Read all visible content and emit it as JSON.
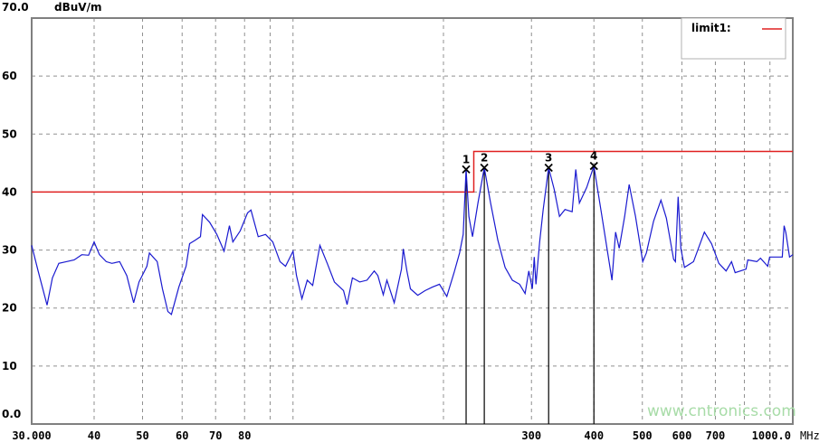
{
  "chart_data": {
    "type": "line",
    "title": "",
    "ylabel": "dBuV/m",
    "xlabel": "MHz",
    "xscale": "log",
    "xlim": [
      30,
      1000
    ],
    "ylim": [
      0,
      70
    ],
    "grid": true,
    "legend_position": "top-right",
    "y_tick_labels": [
      "0.0",
      "10",
      "20",
      "30",
      "40",
      "50",
      "60",
      "70.0"
    ],
    "y_ticks": [
      0,
      10,
      20,
      30,
      40,
      50,
      60,
      70
    ],
    "x_tick_labels": [
      {
        "value": 30,
        "label": "30.000"
      },
      {
        "value": 40,
        "label": "40"
      },
      {
        "value": 50,
        "label": "50"
      },
      {
        "value": 60,
        "label": "60"
      },
      {
        "value": 70,
        "label": "70"
      },
      {
        "value": 80,
        "label": "80"
      },
      {
        "value": 300,
        "label": "300"
      },
      {
        "value": 400,
        "label": "400"
      },
      {
        "value": 500,
        "label": "500"
      },
      {
        "value": 600,
        "label": "600"
      },
      {
        "value": 700,
        "label": "700"
      },
      {
        "value": 1000,
        "label": "1000.0"
      }
    ],
    "x_grid": [
      40,
      50,
      60,
      70,
      80,
      90,
      100,
      200,
      300,
      400,
      500,
      600,
      700,
      800,
      900
    ],
    "limit": {
      "name": "limit1:",
      "color": "#e02020",
      "points": [
        [
          30,
          40
        ],
        [
          230,
          40
        ],
        [
          230,
          47
        ],
        [
          1000,
          47
        ]
      ]
    },
    "trace_color": "#1a1ad0",
    "trace": [
      [
        30.0,
        30.8
      ],
      [
        30.9,
        26.4
      ],
      [
        32.2,
        20.5
      ],
      [
        33.0,
        25.2
      ],
      [
        34.0,
        27.7
      ],
      [
        35.2,
        28.0
      ],
      [
        36.5,
        28.3
      ],
      [
        37.8,
        29.2
      ],
      [
        39.0,
        29.1
      ],
      [
        40.0,
        31.4
      ],
      [
        41.0,
        29.2
      ],
      [
        42.3,
        28.0
      ],
      [
        43.4,
        27.7
      ],
      [
        45.0,
        28.0
      ],
      [
        46.5,
        25.6
      ],
      [
        48.0,
        20.9
      ],
      [
        49.2,
        24.5
      ],
      [
        51.0,
        27.2
      ],
      [
        51.6,
        29.5
      ],
      [
        53.5,
        28.0
      ],
      [
        54.8,
        23.3
      ],
      [
        56.2,
        19.4
      ],
      [
        57.1,
        18.9
      ],
      [
        59.1,
        23.6
      ],
      [
        61.1,
        27.2
      ],
      [
        62.1,
        31.1
      ],
      [
        63.7,
        31.7
      ],
      [
        65.3,
        32.3
      ],
      [
        65.9,
        36.1
      ],
      [
        68.1,
        34.8
      ],
      [
        70.4,
        32.7
      ],
      [
        72.8,
        29.8
      ],
      [
        74.6,
        34.2
      ],
      [
        75.8,
        31.4
      ],
      [
        78.4,
        33.3
      ],
      [
        81.1,
        36.4
      ],
      [
        82.4,
        36.9
      ],
      [
        85.2,
        32.3
      ],
      [
        88.1,
        32.7
      ],
      [
        91.1,
        31.4
      ],
      [
        94.2,
        28.0
      ],
      [
        96.6,
        27.2
      ],
      [
        100.0,
        29.8
      ],
      [
        101.6,
        25.6
      ],
      [
        104.2,
        21.6
      ],
      [
        106.8,
        24.8
      ],
      [
        109.5,
        23.9
      ],
      [
        113.2,
        30.8
      ],
      [
        117.1,
        27.7
      ],
      [
        121.0,
        24.5
      ],
      [
        126.2,
        23.0
      ],
      [
        128.3,
        20.6
      ],
      [
        131.5,
        25.2
      ],
      [
        136.0,
        24.5
      ],
      [
        140.6,
        24.8
      ],
      [
        145.4,
        26.4
      ],
      [
        147.8,
        25.6
      ],
      [
        151.6,
        22.3
      ],
      [
        154.1,
        24.8
      ],
      [
        159.4,
        20.9
      ],
      [
        164.8,
        26.7
      ],
      [
        166.2,
        30.2
      ],
      [
        169.0,
        26.4
      ],
      [
        171.8,
        23.3
      ],
      [
        177.7,
        22.2
      ],
      [
        183.7,
        23.0
      ],
      [
        190.0,
        23.6
      ],
      [
        196.4,
        24.1
      ],
      [
        203.1,
        22.0
      ],
      [
        210.0,
        26.1
      ],
      [
        215.4,
        29.5
      ],
      [
        219.0,
        32.7
      ],
      [
        222.0,
        43.9
      ],
      [
        224.9,
        35.8
      ],
      [
        228.6,
        32.3
      ],
      [
        234.4,
        38.1
      ],
      [
        241.4,
        44.2
      ],
      [
        248.5,
        38.1
      ],
      [
        257.0,
        31.7
      ],
      [
        265.7,
        27.0
      ],
      [
        274.7,
        24.8
      ],
      [
        284.0,
        24.1
      ],
      [
        291.3,
        22.5
      ],
      [
        296.3,
        26.4
      ],
      [
        301.2,
        23.3
      ],
      [
        303.8,
        28.8
      ],
      [
        306.3,
        24.1
      ],
      [
        311.5,
        31.4
      ],
      [
        316.7,
        37.0
      ],
      [
        324.7,
        44.2
      ],
      [
        333.0,
        40.5
      ],
      [
        341.4,
        35.8
      ],
      [
        350.1,
        37.0
      ],
      [
        361.9,
        36.6
      ],
      [
        368.0,
        43.9
      ],
      [
        374.2,
        38.1
      ],
      [
        386.9,
        40.8
      ],
      [
        400.0,
        44.5
      ],
      [
        413.6,
        36.6
      ],
      [
        427.6,
        28.8
      ],
      [
        434.8,
        24.8
      ],
      [
        442.1,
        33.1
      ],
      [
        449.5,
        30.3
      ],
      [
        460.9,
        35.8
      ],
      [
        470.6,
        41.3
      ],
      [
        484.5,
        35.8
      ],
      [
        500.9,
        28.0
      ],
      [
        509.4,
        29.5
      ],
      [
        526.7,
        35.0
      ],
      [
        544.6,
        38.6
      ],
      [
        558.4,
        35.5
      ],
      [
        577.4,
        28.4
      ],
      [
        582.2,
        28.0
      ],
      [
        589.6,
        39.2
      ],
      [
        597.0,
        30.3
      ],
      [
        607.0,
        27.0
      ],
      [
        632.9,
        28.0
      ],
      [
        665.3,
        33.1
      ],
      [
        687.8,
        31.1
      ],
      [
        711.2,
        27.7
      ],
      [
        735.4,
        26.4
      ],
      [
        754.1,
        28.0
      ],
      [
        766.7,
        26.1
      ],
      [
        806.1,
        26.7
      ],
      [
        812.9,
        28.3
      ],
      [
        847.5,
        28.0
      ],
      [
        861.8,
        28.6
      ],
      [
        891.1,
        27.2
      ],
      [
        898.6,
        28.8
      ],
      [
        952.7,
        28.8
      ],
      [
        960.6,
        34.2
      ],
      [
        968.6,
        33.0
      ],
      [
        985.0,
        28.8
      ],
      [
        1000.0,
        29.2
      ]
    ],
    "markers": [
      {
        "label": "1",
        "freq": 222.0,
        "level": 43.9
      },
      {
        "label": "2",
        "freq": 241.4,
        "level": 44.2
      },
      {
        "label": "3",
        "freq": 324.7,
        "level": 44.2
      },
      {
        "label": "4",
        "freq": 400.0,
        "level": 44.5
      }
    ]
  },
  "watermark": "www.cntronics.com"
}
